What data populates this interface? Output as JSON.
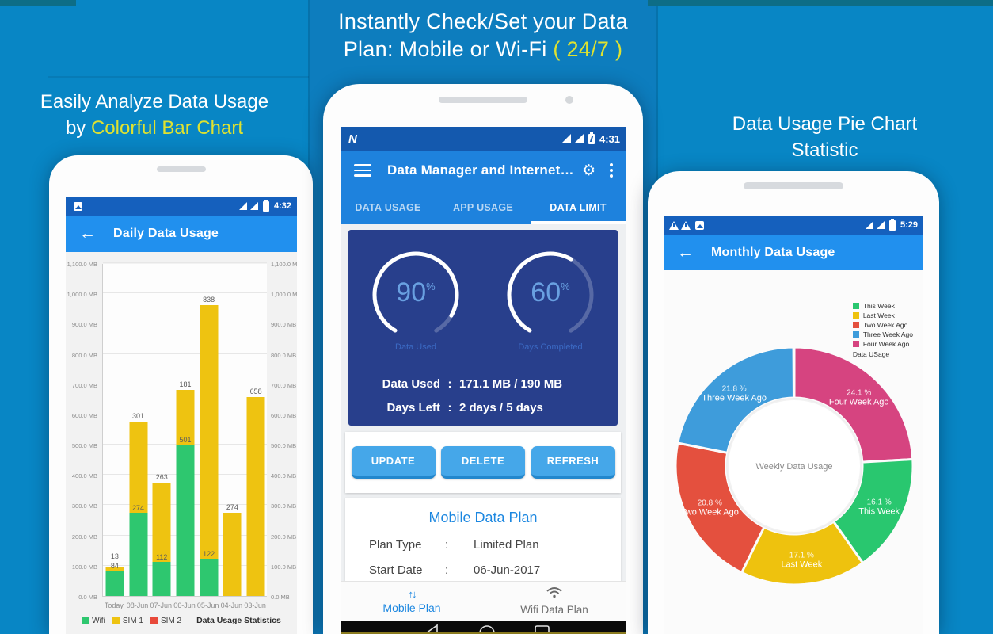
{
  "palette": {
    "bg_side": "#0886c5",
    "bg_mid": "#0d7dbe",
    "accent_yellow": "#dfe230",
    "statusbar_blue": "#1560bd",
    "appbar_blue": "#2190ee",
    "navy_card": "#283f8c",
    "button_blue": "#45a7e9",
    "button_edge": "#2287cd",
    "wifi_green": "#2ec76f",
    "sim1_yellow": "#eec311",
    "sim2_red": "#e8493a"
  },
  "icons": {
    "gear": "⚙",
    "back": "←",
    "updown": "↑↓"
  },
  "headers": {
    "mid_line1": "Instantly Check/Set your Data",
    "mid_line2_prefix": "Plan: Mobile or Wi-Fi ",
    "mid_line2_accent": "( 24/7 )",
    "left_line1": "Easily Analyze Data Usage",
    "left_line2_prefix": "by ",
    "left_line2_accent": "Colorful Bar Chart",
    "right_line1": "Data Usage Pie Chart",
    "right_line2": "Statistic"
  },
  "left_phone": {
    "status_time": "4:32",
    "appbar_title": "Daily Data Usage"
  },
  "mid_phone": {
    "status_time": "4:31",
    "status_logo": "N",
    "appbar_title": "Data Manager and Internet…",
    "tabs": [
      {
        "label": "DATA USAGE",
        "active": false
      },
      {
        "label": "APP USAGE",
        "active": false
      },
      {
        "label": "DATA LIMIT",
        "active": true
      }
    ],
    "gauges": [
      {
        "pct": 90,
        "label": "Data Used"
      },
      {
        "pct": 60,
        "label": "Days Completed"
      }
    ],
    "stats": [
      {
        "label": "Data Used",
        "value": "171.1 MB / 190 MB"
      },
      {
        "label": "Days Left",
        "value": "2 days / 5 days"
      }
    ],
    "buttons": [
      "UPDATE",
      "DELETE",
      "REFRESH"
    ],
    "plan_card": {
      "title": "Mobile Data Plan",
      "rows": [
        {
          "label": "Plan Type",
          "value": "Limited Plan"
        },
        {
          "label": "Start Date",
          "value": "06-Jun-2017"
        }
      ]
    },
    "bottom_nav": [
      {
        "label": "Mobile Plan",
        "active": true
      },
      {
        "label": "Wifi Data Plan",
        "active": false
      }
    ]
  },
  "right_phone": {
    "status_time": "5:29",
    "appbar_title": "Monthly Data Usage"
  },
  "chart_data": [
    {
      "type": "bar",
      "stacked": true,
      "title": "Data Usage Statistics",
      "categories": [
        "Today",
        "08-Jun",
        "07-Jun",
        "06-Jun",
        "05-Jun",
        "04-Jun",
        "03-Jun"
      ],
      "series": [
        {
          "name": "Wifi",
          "color": "#2ec76f",
          "values": [
            84,
            274,
            112,
            501,
            122,
            0,
            0
          ]
        },
        {
          "name": "SIM 1",
          "color": "#eec311",
          "values": [
            13,
            301,
            263,
            181,
            838,
            274,
            658
          ]
        },
        {
          "name": "SIM 2",
          "color": "#e8493a",
          "values": [
            0,
            0,
            0,
            0,
            0,
            0,
            0
          ]
        }
      ],
      "ylim": [
        0,
        1100
      ],
      "grid": true,
      "dual_axis": true,
      "yticks": [
        "1,100.0 MB",
        "1,000.0 MB",
        "900.0 MB",
        "800.0 MB",
        "700.0 MB",
        "600.0 MB",
        "500.0 MB",
        "400.0 MB",
        "300.0 MB",
        "200.0 MB",
        "100.0 MB",
        "0.0 MB"
      ]
    },
    {
      "type": "pie",
      "donut": true,
      "center_label": "Weekly Data Usage",
      "legend_title": "Data USage",
      "legend_position": "top-right",
      "slices": [
        {
          "name": "Four Week Ago",
          "pct": 24.1,
          "color": "#d64480"
        },
        {
          "name": "This Week",
          "pct": 16.1,
          "color": "#29c76f"
        },
        {
          "name": "Last Week",
          "pct": 17.1,
          "color": "#eec20e"
        },
        {
          "name": "Two Week Ago",
          "pct": 20.8,
          "color": "#e4503e"
        },
        {
          "name": "Three Week Ago",
          "pct": 21.8,
          "color": "#3e9cdb"
        }
      ],
      "legend_order": [
        "This Week",
        "Last Week",
        "Two Week Ago",
        "Three Week Ago",
        "Four Week Ago"
      ]
    }
  ]
}
